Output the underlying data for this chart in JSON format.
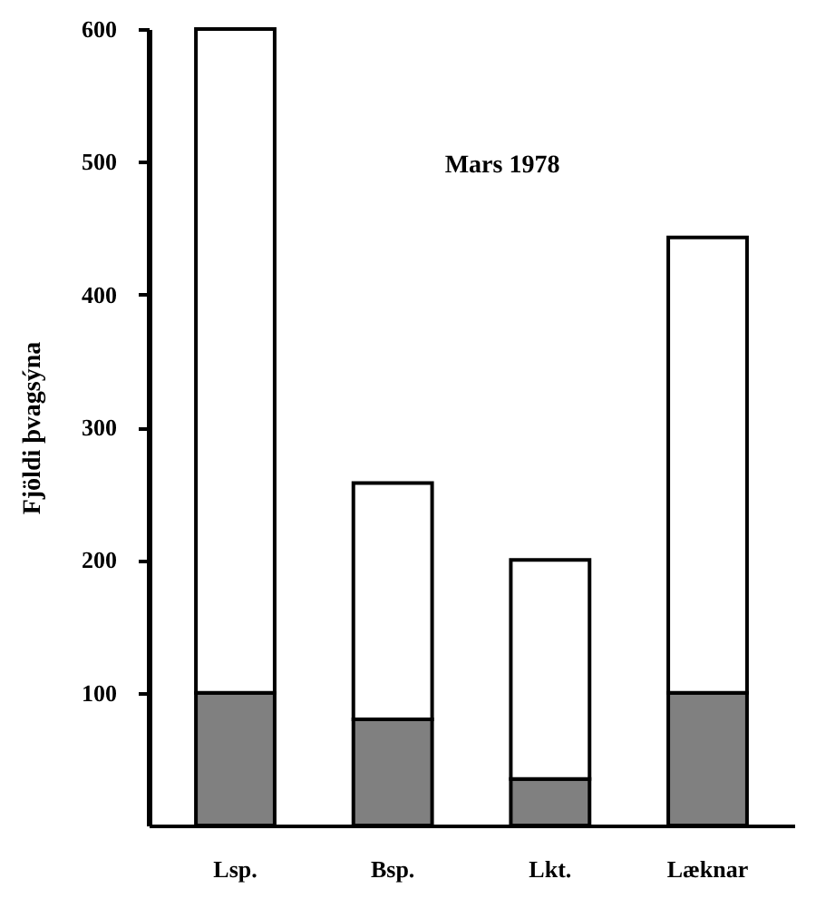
{
  "chart_data": {
    "type": "bar",
    "stacked": true,
    "categories": [
      "Lsp.",
      "Bsp.",
      "Lkt.",
      "Læknar"
    ],
    "series": [
      {
        "color": "#808080",
        "values": [
          100,
          80,
          35,
          100
        ]
      },
      {
        "color": "#ffffff",
        "values": [
          500,
          178,
          165,
          343
        ]
      }
    ],
    "ylabel": "Fjöldi þvagsýna",
    "annotations": [
      "Mars 1978"
    ],
    "ylim": [
      0,
      600
    ],
    "yticks": [
      100,
      200,
      300,
      400,
      500,
      600
    ],
    "grid": false,
    "legend": false
  }
}
